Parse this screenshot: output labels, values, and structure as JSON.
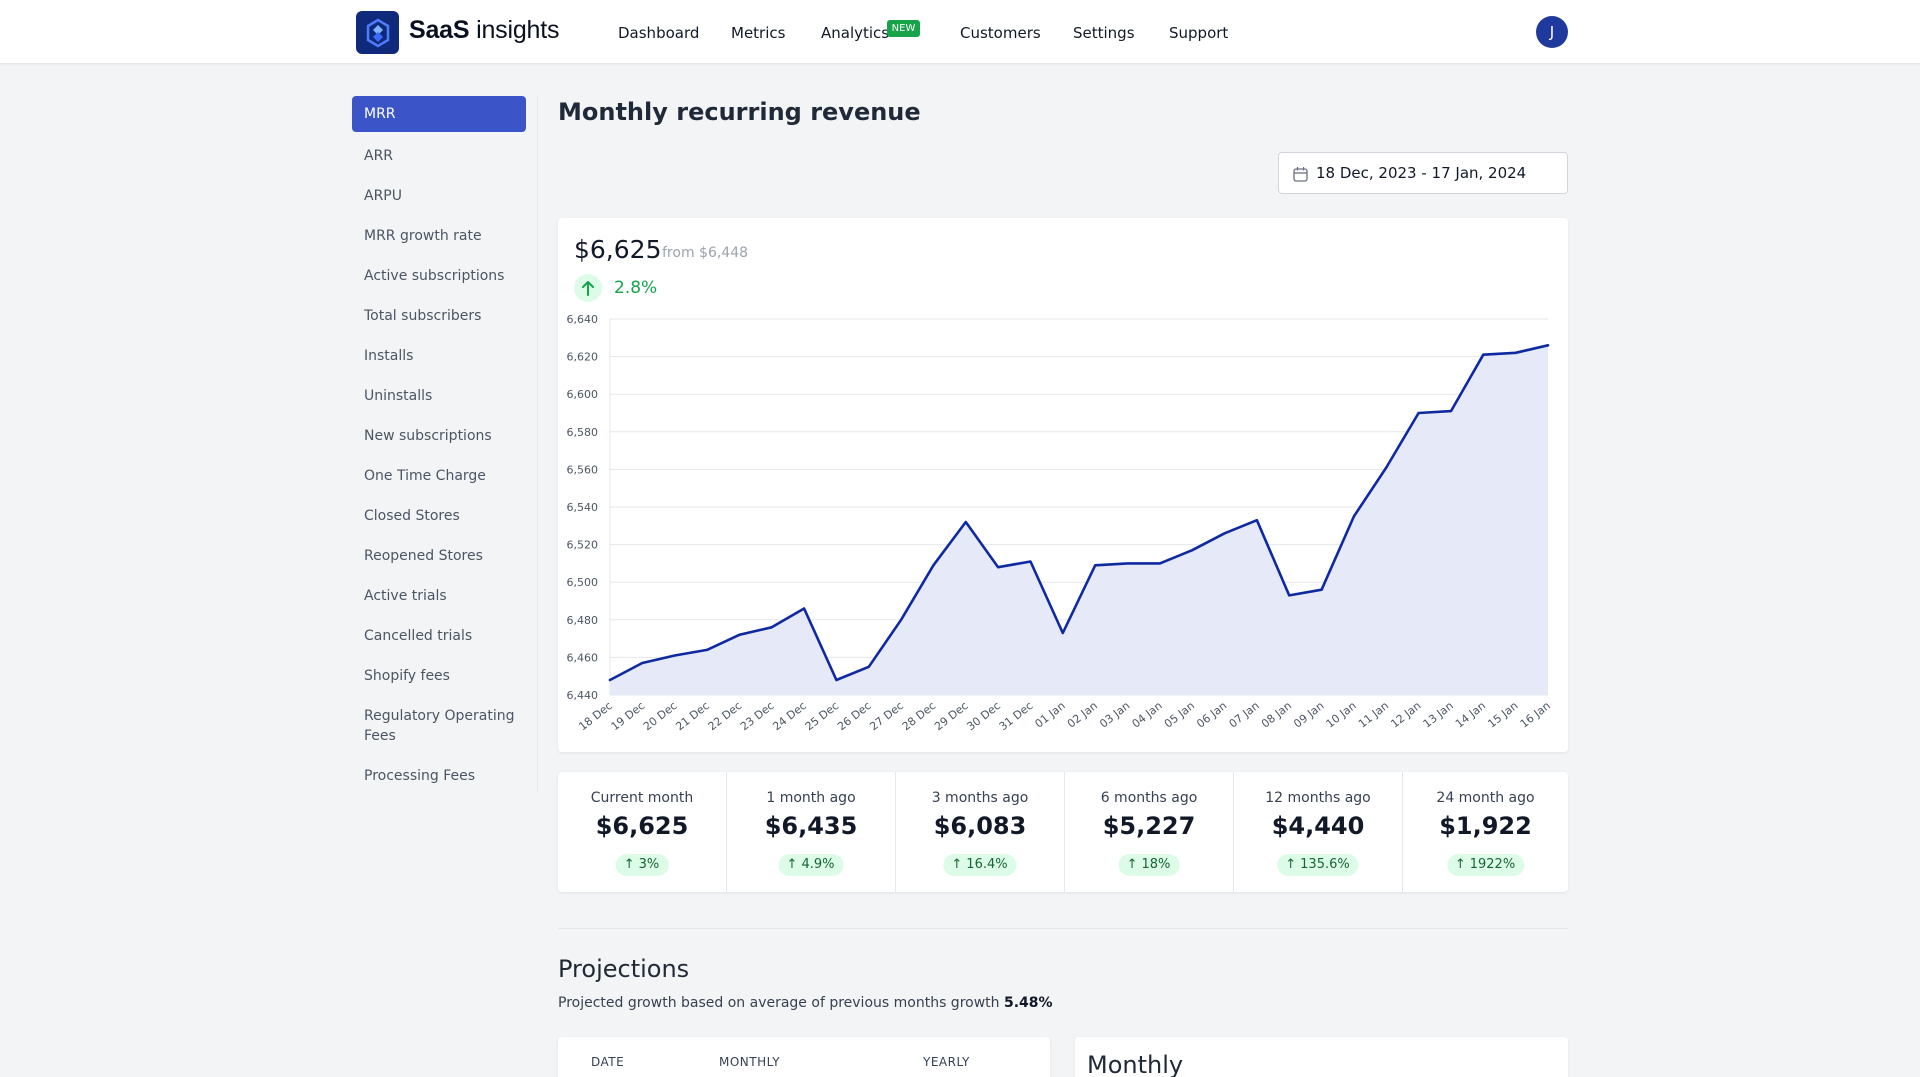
{
  "header": {
    "brand_bold": "SaaS",
    "brand_rest": "insights",
    "nav": [
      "Dashboard",
      "Metrics",
      "Analytics",
      "Customers",
      "Settings",
      "Support"
    ],
    "new_badge": "NEW",
    "avatar_initial": "J"
  },
  "sidebar": {
    "items": [
      "MRR",
      "ARR",
      "ARPU",
      "MRR growth rate",
      "Active subscriptions",
      "Total subscribers",
      "Installs",
      "Uninstalls",
      "New subscriptions",
      "One Time Charge",
      "Closed Stores",
      "Reopened Stores",
      "Active trials",
      "Cancelled trials",
      "Shopify fees",
      "Regulatory Operating Fees",
      "Processing Fees"
    ],
    "active_index": 0
  },
  "page": {
    "title": "Monthly recurring revenue",
    "date_range": "18 Dec, 2023 - 17 Jan, 2024"
  },
  "summary": {
    "value": "$6,625",
    "from": "from $6,448",
    "change": "2.8%"
  },
  "chart_data": {
    "type": "area",
    "x": [
      "18 Dec",
      "19 Dec",
      "20 Dec",
      "21 Dec",
      "22 Dec",
      "23 Dec",
      "24 Dec",
      "25 Dec",
      "26 Dec",
      "27 Dec",
      "28 Dec",
      "29 Dec",
      "30 Dec",
      "31 Dec",
      "01 Jan",
      "02 Jan",
      "03 Jan",
      "04 Jan",
      "05 Jan",
      "06 Jan",
      "07 Jan",
      "08 Jan",
      "09 Jan",
      "10 Jan",
      "11 Jan",
      "12 Jan",
      "13 Jan",
      "14 Jan",
      "15 Jan",
      "16 Jan"
    ],
    "values": [
      6448,
      6457,
      6461,
      6464,
      6472,
      6476,
      6486,
      6448,
      6455,
      6480,
      6509,
      6532,
      6508,
      6511,
      6473,
      6509,
      6510,
      6510,
      6517,
      6526,
      6533,
      6493,
      6496,
      6535,
      6561,
      6590,
      6591,
      6621,
      6622,
      6626
    ],
    "ylim": [
      6440,
      6640
    ],
    "yticks": [
      "6,440",
      "6,460",
      "6,480",
      "6,500",
      "6,520",
      "6,540",
      "6,560",
      "6,580",
      "6,600",
      "6,620",
      "6,640"
    ],
    "line_color": "#0f2aa0",
    "fill_color": "#e6e9f8",
    "grid": true
  },
  "stats": [
    {
      "label": "Current month",
      "value": "$6,625",
      "change": "3%"
    },
    {
      "label": "1 month ago",
      "value": "$6,435",
      "change": "4.9%"
    },
    {
      "label": "3 months ago",
      "value": "$6,083",
      "change": "16.4%"
    },
    {
      "label": "6 months ago",
      "value": "$5,227",
      "change": "18%"
    },
    {
      "label": "12 months ago",
      "value": "$4,440",
      "change": "135.6%"
    },
    {
      "label": "24 month ago",
      "value": "$1,922",
      "change": "1922%"
    }
  ],
  "projections": {
    "title": "Projections",
    "subtitle": "Projected growth based on average of previous months growth",
    "growth": "5.48%",
    "table_headers": [
      "DATE",
      "MONTHLY",
      "YEARLY"
    ],
    "monthly_title": "Monthly"
  }
}
